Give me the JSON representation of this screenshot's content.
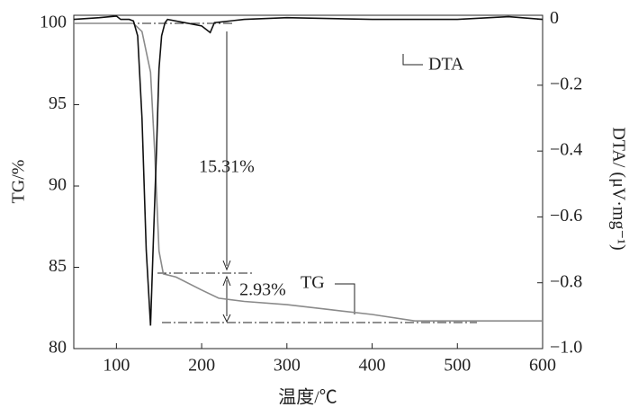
{
  "chart_data": {
    "type": "line",
    "x_label": "温度/℃",
    "y_label": "TG/%",
    "y2_label": "DTA/ (μV·mg⁻¹)",
    "xlim": [
      50,
      600
    ],
    "xticks": [
      100,
      200,
      300,
      400,
      500,
      600
    ],
    "ylim": [
      80,
      100.5
    ],
    "yticks": [
      80,
      85,
      90,
      95,
      100
    ],
    "y2lim": [
      -1.0,
      0.0125
    ],
    "y2ticks": [
      0,
      {
        "value": -0.2,
        "label": "−0.2"
      },
      {
        "value": -0.4,
        "label": "−0.4"
      },
      {
        "value": -0.6,
        "label": "−0.6"
      },
      {
        "value": -0.8,
        "label": "−0.8"
      },
      {
        "value": -1.0,
        "label": "−1.0"
      }
    ],
    "annotations": [
      "15.31%",
      "2.93%"
    ],
    "series": [
      {
        "name": "TG",
        "color": "#8a8a8a",
        "axis": "y",
        "x": [
          50,
          120,
          130,
          140,
          145,
          150,
          155,
          170,
          200,
          220,
          250,
          300,
          350,
          400,
          450,
          500,
          600
        ],
        "values": [
          100,
          100,
          99.5,
          97,
          92,
          86,
          84.6,
          84.4,
          83.6,
          83.1,
          82.9,
          82.7,
          82.4,
          82.1,
          81.7,
          81.7,
          81.7
        ]
      },
      {
        "name": "DTA",
        "color": "#111111",
        "axis": "y2",
        "x": [
          50,
          80,
          100,
          105,
          115,
          120,
          125,
          130,
          135,
          140,
          143,
          147,
          150,
          153,
          157,
          160,
          180,
          200,
          210,
          215,
          250,
          300,
          400,
          500,
          560,
          600
        ],
        "values": [
          0,
          0.005,
          0.01,
          0,
          0,
          -0.005,
          -0.05,
          -0.3,
          -0.7,
          -0.93,
          -0.7,
          -0.4,
          -0.15,
          -0.05,
          -0.01,
          0,
          -0.01,
          -0.02,
          -0.04,
          -0.01,
          0,
          0.005,
          0,
          0,
          0.008,
          0
        ]
      }
    ]
  }
}
